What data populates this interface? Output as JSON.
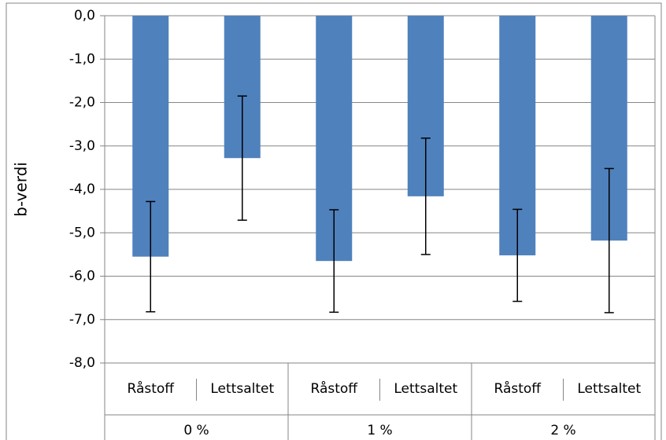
{
  "chart_data": {
    "type": "bar",
    "y_label": "b-verdi",
    "categories": [
      "Råstoff",
      "Lettsaltet",
      "Råstoff",
      "Lettsaltet",
      "Råstoff",
      "Lettsaltet"
    ],
    "group_labels": [
      "0 %",
      "1 %",
      "2 %"
    ],
    "values": [
      -5.55,
      -3.28,
      -5.65,
      -4.16,
      -5.52,
      -5.18
    ],
    "errors": [
      1.27,
      1.43,
      1.18,
      1.34,
      1.06,
      1.66
    ],
    "color": "#4f81bd",
    "ylim": [
      -8,
      0
    ],
    "yticks": [
      {
        "value": 0,
        "label": "0,0"
      },
      {
        "value": -1,
        "label": "-1,0"
      },
      {
        "value": -2,
        "label": "-2,0"
      },
      {
        "value": -3,
        "label": "-3,0"
      },
      {
        "value": -4,
        "label": "-4,0"
      },
      {
        "value": -5,
        "label": "-5,0"
      },
      {
        "value": -6,
        "label": "-6,0"
      },
      {
        "value": -7,
        "label": "-7,0"
      },
      {
        "value": -8,
        "label": "-8,0"
      }
    ],
    "grid": true
  }
}
